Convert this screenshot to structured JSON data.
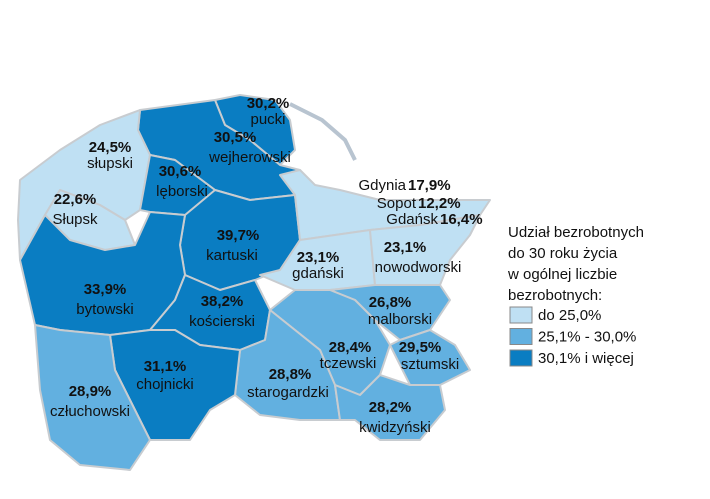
{
  "regions": [
    {
      "name": "pucki",
      "value": "30,2%",
      "color": "#0a7dc2"
    },
    {
      "name": "wejherowski",
      "value": "30,5%",
      "color": "#0a7dc2"
    },
    {
      "name": "słupski",
      "value": "24,5%",
      "color": "#bfe0f3"
    },
    {
      "name": "Słupsk",
      "value": "22,6%",
      "color": "#bfe0f3"
    },
    {
      "name": "lęborski",
      "value": "30,6%",
      "color": "#0a7dc2"
    },
    {
      "name": "kartuski",
      "value": "39,7%",
      "color": "#0a7dc2"
    },
    {
      "name": "Gdynia",
      "value": "17,9%",
      "color": "#bfe0f3"
    },
    {
      "name": "Sopot",
      "value": "12,2%",
      "color": "#bfe0f3"
    },
    {
      "name": "Gdańsk",
      "value": "16,4%",
      "color": "#bfe0f3"
    },
    {
      "name": "gdański",
      "value": "23,1%",
      "color": "#bfe0f3"
    },
    {
      "name": "nowodworski",
      "value": "23,1%",
      "color": "#bfe0f3"
    },
    {
      "name": "bytowski",
      "value": "33,9%",
      "color": "#0a7dc2"
    },
    {
      "name": "kościerski",
      "value": "38,2%",
      "color": "#0a7dc2"
    },
    {
      "name": "malborski",
      "value": "26,8%",
      "color": "#62b0e0"
    },
    {
      "name": "tczewski",
      "value": "28,4%",
      "color": "#62b0e0"
    },
    {
      "name": "sztumski",
      "value": "29,5%",
      "color": "#62b0e0"
    },
    {
      "name": "starogardzki",
      "value": "28,8%",
      "color": "#62b0e0"
    },
    {
      "name": "kwidzyński",
      "value": "28,2%",
      "color": "#62b0e0"
    },
    {
      "name": "chojnicki",
      "value": "31,1%",
      "color": "#0a7dc2"
    },
    {
      "name": "człuchowski",
      "value": "28,9%",
      "color": "#62b0e0"
    }
  ],
  "legend": {
    "title": [
      "Udział bezrobotnych",
      "do 30 roku życia",
      "w ogólnej liczbie",
      "bezrobotnych:"
    ],
    "items": [
      {
        "label": "do 25,0%",
        "color": "#bfe0f3"
      },
      {
        "label": "25,1% - 30,0%",
        "color": "#62b0e0"
      },
      {
        "label": "30,1% i więcej",
        "color": "#0a7dc2"
      }
    ]
  }
}
